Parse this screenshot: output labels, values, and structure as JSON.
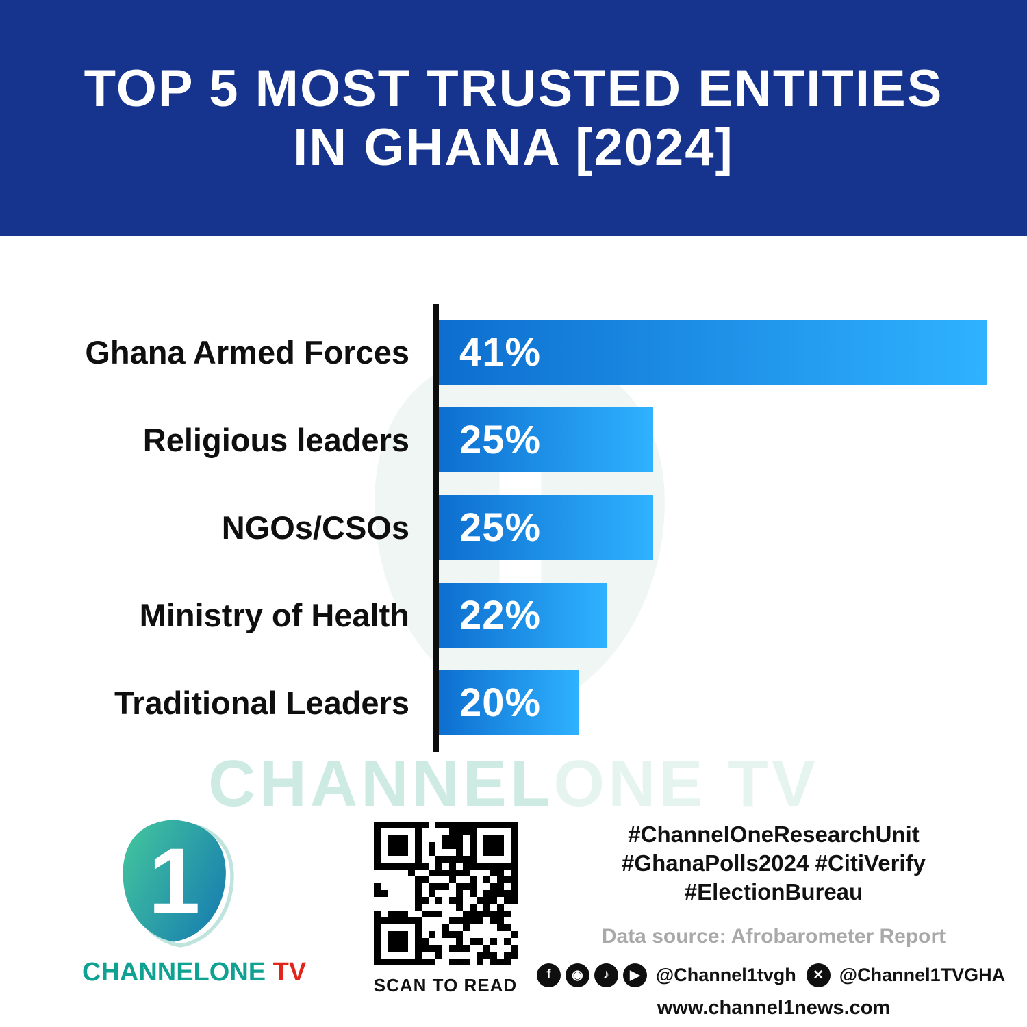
{
  "header": {
    "title_line1": "TOP 5 MOST TRUSTED ENTITIES",
    "title_line2": "IN GHANA [2024]",
    "bg_color": "#16348e"
  },
  "chart_data": {
    "type": "bar",
    "orientation": "horizontal",
    "title": "Top 5 Most Trusted Entities in Ghana [2024]",
    "categories": [
      "Ghana Armed Forces",
      "Religious leaders",
      "NGOs/CSOs",
      "Ministry of Health",
      "Traditional Leaders"
    ],
    "values": [
      41,
      25,
      25,
      22,
      20
    ],
    "value_labels": [
      "41%",
      "25%",
      "25%",
      "22%",
      "20%"
    ],
    "xlabel": "",
    "ylabel": "",
    "xlim": [
      0,
      41
    ],
    "grid": false,
    "legend": false,
    "bar_gradient_start": "#0d6ecf",
    "bar_gradient_end": "#2fb2ff",
    "axis_color": "#0d0d0d"
  },
  "watermark": {
    "part1": "CHANNEL",
    "part2": "ONE TV"
  },
  "footer": {
    "brand": {
      "main": "CHANNELONE",
      "tv": " TV",
      "teal": "#0fa191",
      "red": "#e2251a"
    },
    "qr_caption": "SCAN TO READ",
    "hashtags_line1": "#ChannelOneResearchUnit",
    "hashtags_line2": "#GhanaPolls2024 #CitiVerify",
    "hashtags_line3": "#ElectionBureau",
    "data_source": "Data source: Afrobarometer Report",
    "social": {
      "icons": [
        {
          "name": "facebook-icon",
          "glyph": "f"
        },
        {
          "name": "instagram-icon",
          "glyph": "◉"
        },
        {
          "name": "tiktok-icon",
          "glyph": "♪"
        },
        {
          "name": "youtube-icon",
          "glyph": "▶"
        }
      ],
      "handle1": "@Channel1tvgh",
      "x_icon": {
        "name": "x-icon",
        "glyph": "✕"
      },
      "handle2": "@Channel1TVGHA"
    },
    "website": "www.channel1news.com"
  }
}
